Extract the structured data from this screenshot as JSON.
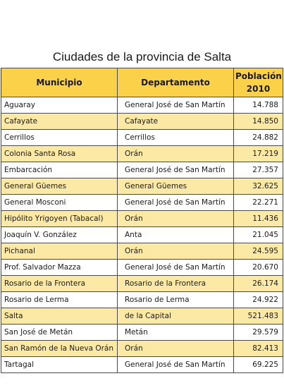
{
  "title": "Ciudades de la provincia de Salta",
  "table": {
    "headers": {
      "municipio": "Municipio",
      "departamento": "Departamento",
      "poblacion_line1": "Población",
      "poblacion_line2": "2010"
    },
    "rows": [
      {
        "municipio": "Aguaray",
        "departamento": "General José de San Martín",
        "poblacion": "14.788"
      },
      {
        "municipio": "Cafayate",
        "departamento": "Cafayate",
        "poblacion": "14.850"
      },
      {
        "municipio": "Cerrillos",
        "departamento": "Cerrillos",
        "poblacion": "24.882"
      },
      {
        "municipio": "Colonia Santa Rosa",
        "departamento": "Orán",
        "poblacion": "17.219"
      },
      {
        "municipio": "Embarcación",
        "departamento": "General José de San Martín",
        "poblacion": "27.357"
      },
      {
        "municipio": "General Güemes",
        "departamento": "General Güemes",
        "poblacion": "32.625"
      },
      {
        "municipio": "General Mosconi",
        "departamento": "General José de San Martín",
        "poblacion": "22.271"
      },
      {
        "municipio": "Hipólito Yrigoyen (Tabacal)",
        "departamento": "Orán",
        "poblacion": "11.436"
      },
      {
        "municipio": "Joaquín V. González",
        "departamento": "Anta",
        "poblacion": "21.045"
      },
      {
        "municipio": "Pichanal",
        "departamento": "Orán",
        "poblacion": "24.595"
      },
      {
        "municipio": "Prof. Salvador Mazza",
        "departamento": "General José de San Martín",
        "poblacion": "20.670"
      },
      {
        "municipio": "Rosario de la Frontera",
        "departamento": "Rosario de la Frontera",
        "poblacion": "26.174"
      },
      {
        "municipio": "Rosario de Lerma",
        "departamento": "Rosario de Lerma",
        "poblacion": "24.922"
      },
      {
        "municipio": "Salta",
        "departamento": "de la Capital",
        "poblacion": "521.483"
      },
      {
        "municipio": "San José de Metán",
        "departamento": "Metán",
        "poblacion": "29.579"
      },
      {
        "municipio": "San Ramón de la Nueva Orán",
        "departamento": "Orán",
        "poblacion": "82.413"
      },
      {
        "municipio": "Tartagal",
        "departamento": "General José de San Martín",
        "poblacion": "69.225"
      }
    ]
  }
}
